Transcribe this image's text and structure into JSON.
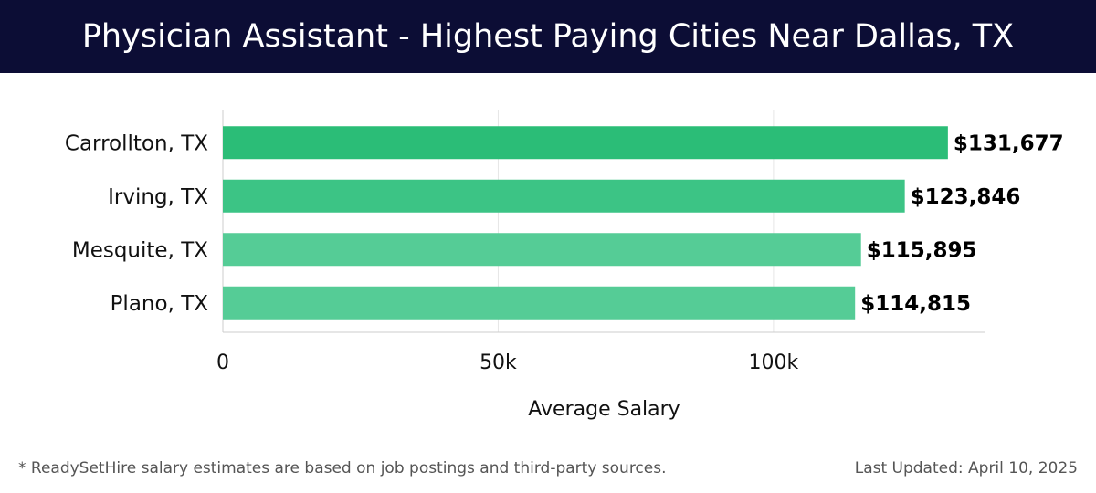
{
  "header": {
    "title": "Physician Assistant - Highest Paying Cities Near Dallas, TX"
  },
  "chart_data": {
    "type": "bar",
    "orientation": "horizontal",
    "categories": [
      "Carrollton, TX",
      "Irving, TX",
      "Mesquite, TX",
      "Plano, TX"
    ],
    "values": [
      131677,
      123846,
      115895,
      114815
    ],
    "value_labels": [
      "$131,677",
      "$123,846",
      "$115,895",
      "$114,815"
    ],
    "xlabel": "Average Salary",
    "ylabel": "",
    "xlim": [
      0,
      138500
    ],
    "xticks": [
      {
        "value": 0,
        "label": "0"
      },
      {
        "value": 50000,
        "label": "50k"
      },
      {
        "value": 100000,
        "label": "100k"
      }
    ],
    "grid": true,
    "colors": {
      "bar_top": "#2bbd77",
      "bar_mid": "#3cc485",
      "bar_rest": "#55cc96",
      "grid": "#e6e6e6",
      "axis": "#cccccc"
    }
  },
  "footer": {
    "note": "* ReadySetHire salary estimates are based on job postings and third-party sources.",
    "updated": "Last Updated: April 10, 2025"
  }
}
